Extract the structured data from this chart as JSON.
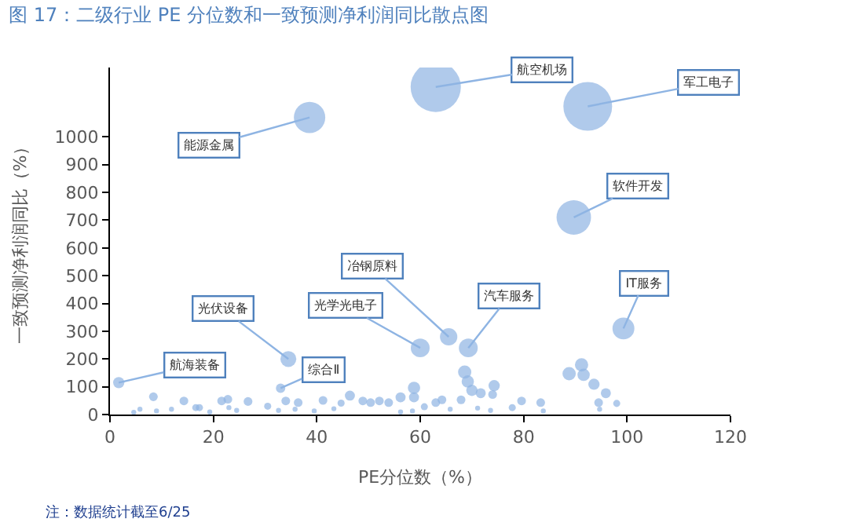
{
  "chart_data": {
    "type": "bubble",
    "title": "图 17：二级行业 PE 分位数和一致预测净利润同比散点图",
    "xlabel": "PE分位数（%）",
    "ylabel": "一致预测净利润同比（%）",
    "xlim": [
      0,
      120
    ],
    "xticks": [
      0,
      20,
      40,
      60,
      80,
      100,
      120
    ],
    "ylim": [
      0,
      1250
    ],
    "yticks": [
      0,
      100,
      200,
      300,
      400,
      500,
      600,
      700,
      800,
      900,
      1000
    ],
    "series": [
      {
        "color": "#8eb4e3",
        "x": [
          38.6,
          63,
          92.4,
          89.7,
          99.3,
          65.5,
          60,
          69.3,
          34.5,
          33,
          1.7,
          8.4,
          14.3,
          4.6,
          5.8,
          9,
          11.9,
          16.6,
          17.3,
          19.3,
          21.6,
          22.8,
          23,
          24.5,
          26.7,
          30.5,
          32.6,
          34,
          36.4,
          35.8,
          39.5,
          41.2,
          43.3,
          44.7,
          46.4,
          48.9,
          50.4,
          52.1,
          53.9,
          56.2,
          58.8,
          58.8,
          56.2,
          58.5,
          60.8,
          63,
          64.2,
          65.8,
          68.6,
          69.2,
          70,
          71.7,
          74,
          74.3,
          67.9,
          71.1,
          73.6,
          77.8,
          79.6,
          83.3,
          83.8,
          88.8,
          91.2,
          91.6,
          93.6,
          95.9,
          98,
          94.5,
          94.7
        ],
        "values": [
          1070,
          1180,
          1110,
          710,
          310,
          280,
          240,
          240,
          200,
          95,
          115,
          64,
          49,
          8,
          19,
          13,
          19,
          25,
          25,
          9,
          49,
          55,
          25,
          15,
          47,
          30,
          15,
          49,
          43,
          19,
          13,
          51,
          21,
          41,
          68,
          49,
          43,
          49,
          43,
          62,
          96,
          62,
          9,
          13,
          28,
          43,
          53,
          19,
          153,
          119,
          87,
          77,
          72,
          104,
          53,
          23,
          15,
          25,
          49,
          43,
          13,
          147,
          179,
          143,
          109,
          77,
          40,
          43,
          19
        ],
        "sizes": [
          0.39,
          1,
          0.94,
          0.47,
          0.19,
          0.12,
          0.14,
          0.14,
          0.1,
          0.035,
          0.05,
          0.03,
          0.03,
          0.01,
          0.01,
          0.01,
          0.01,
          0.02,
          0.02,
          0.01,
          0.03,
          0.03,
          0.01,
          0.01,
          0.03,
          0.02,
          0.01,
          0.03,
          0.03,
          0.01,
          0.01,
          0.03,
          0.01,
          0.02,
          0.04,
          0.03,
          0.03,
          0.03,
          0.03,
          0.04,
          0.06,
          0.04,
          0.01,
          0.01,
          0.02,
          0.03,
          0.03,
          0.01,
          0.07,
          0.06,
          0.05,
          0.04,
          0.03,
          0.05,
          0.03,
          0.01,
          0.01,
          0.02,
          0.03,
          0.03,
          0.01,
          0.07,
          0.07,
          0.06,
          0.05,
          0.04,
          0.02,
          0.03,
          0.01
        ]
      }
    ],
    "annotations": [
      {
        "text": "能源金属",
        "x": 38.6,
        "y": 1070
      },
      {
        "text": "航空机场",
        "x": 63,
        "y": 1180
      },
      {
        "text": "军工电子",
        "x": 92.4,
        "y": 1110
      },
      {
        "text": "软件开发",
        "x": 89.7,
        "y": 710
      },
      {
        "text": "IT服务",
        "x": 99.3,
        "y": 310
      },
      {
        "text": "冶钢原料",
        "x": 65.5,
        "y": 280
      },
      {
        "text": "光学光电子",
        "x": 60,
        "y": 240
      },
      {
        "text": "汽车服务",
        "x": 69.3,
        "y": 240
      },
      {
        "text": "光伏设备",
        "x": 34.5,
        "y": 200
      },
      {
        "text": "综合Ⅱ",
        "x": 33,
        "y": 95
      },
      {
        "text": "航海装备",
        "x": 1.7,
        "y": 115
      },
      "注：数据统计截至6/25"
    ]
  }
}
